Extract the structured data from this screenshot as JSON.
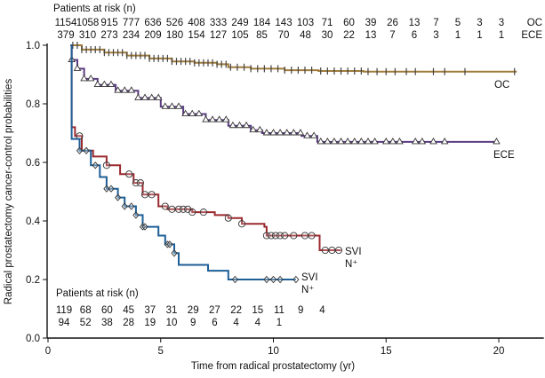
{
  "chart_data": {
    "type": "line",
    "subtype": "kaplan-meier",
    "title": "",
    "xlabel": "Time from radical prostatectomy (yr)",
    "ylabel": "Radical prostatectomy cancer-control probabilities",
    "xlim": [
      0,
      22
    ],
    "ylim": [
      0,
      1
    ],
    "x_ticks": [
      "0",
      "5",
      "10",
      "15",
      "20"
    ],
    "x_tick_values": [
      0,
      5,
      10,
      15,
      20
    ],
    "y_ticks": [
      "0.0",
      "0.2",
      "0.4",
      "0.6",
      "0.8",
      "1.0"
    ],
    "y_tick_values": [
      0,
      0.2,
      0.4,
      0.6,
      0.8,
      1.0
    ],
    "grid": false,
    "series": [
      {
        "name": "OC",
        "label_lines": [
          "OC"
        ],
        "color": "#a07c3c",
        "marker": "tick",
        "points": [
          [
            1.0,
            1.0
          ],
          [
            1.5,
            0.985
          ],
          [
            2.5,
            0.975
          ],
          [
            3.5,
            0.965
          ],
          [
            4.5,
            0.955
          ],
          [
            5.5,
            0.945
          ],
          [
            6.5,
            0.94
          ],
          [
            7.5,
            0.935
          ],
          [
            8.0,
            0.925
          ],
          [
            9.0,
            0.92
          ],
          [
            10.5,
            0.915
          ],
          [
            12.0,
            0.912
          ],
          [
            14.0,
            0.91
          ],
          [
            20.8,
            0.91
          ]
        ],
        "censor_x": [
          1.1,
          1.3,
          1.5,
          1.7,
          1.9,
          2.1,
          2.3,
          2.5,
          2.7,
          2.9,
          3.1,
          3.3,
          3.5,
          3.7,
          3.9,
          4.1,
          4.3,
          4.5,
          4.7,
          4.9,
          5.1,
          5.3,
          5.5,
          5.7,
          5.9,
          6.1,
          6.3,
          6.5,
          6.7,
          6.9,
          7.1,
          7.3,
          7.5,
          7.7,
          7.9,
          8.1,
          8.4,
          8.7,
          9.0,
          9.3,
          9.6,
          9.9,
          10.2,
          10.5,
          10.8,
          11.1,
          11.4,
          11.7,
          12.1,
          12.4,
          12.7,
          13.0,
          13.3,
          13.6,
          13.9,
          14.2,
          14.6,
          15.0,
          15.4,
          15.9,
          16.3,
          17.1,
          17.6,
          18.5,
          20.7
        ]
      },
      {
        "name": "ECE",
        "label_lines": [
          "ECE"
        ],
        "color": "#5a3c82",
        "marker": "triangle",
        "points": [
          [
            1.0,
            1.0
          ],
          [
            1.05,
            0.95
          ],
          [
            1.3,
            0.92
          ],
          [
            1.6,
            0.885
          ],
          [
            2.2,
            0.865
          ],
          [
            3.0,
            0.845
          ],
          [
            4.0,
            0.82
          ],
          [
            5.0,
            0.79
          ],
          [
            6.0,
            0.765
          ],
          [
            7.0,
            0.745
          ],
          [
            8.0,
            0.725
          ],
          [
            9.0,
            0.71
          ],
          [
            9.5,
            0.7
          ],
          [
            11.2,
            0.7
          ],
          [
            11.25,
            0.69
          ],
          [
            11.9,
            0.69
          ],
          [
            11.95,
            0.67
          ],
          [
            19.9,
            0.67
          ]
        ],
        "censor_x": [
          1.05,
          1.3,
          1.6,
          1.9,
          2.2,
          2.5,
          2.8,
          3.1,
          3.4,
          3.7,
          4.0,
          4.3,
          4.6,
          4.9,
          5.2,
          5.5,
          5.8,
          6.1,
          6.4,
          6.7,
          7.0,
          7.3,
          7.6,
          7.9,
          8.2,
          8.5,
          8.8,
          9.1,
          9.4,
          9.7,
          10.0,
          10.3,
          10.6,
          10.9,
          11.2,
          11.5,
          11.8,
          12.1,
          12.4,
          12.7,
          13.0,
          13.3,
          13.6,
          13.9,
          14.2,
          14.5,
          15.0,
          15.3,
          15.6,
          16.3,
          16.6,
          17.1,
          17.6,
          19.9
        ]
      },
      {
        "name": "SVI",
        "label_lines": [
          "SVI",
          "N⁺"
        ],
        "color": "#9b2a2f",
        "marker": "circle",
        "points": [
          [
            1.0,
            1.0
          ],
          [
            1.05,
            0.72
          ],
          [
            1.2,
            0.69
          ],
          [
            1.5,
            0.64
          ],
          [
            2.0,
            0.62
          ],
          [
            2.6,
            0.59
          ],
          [
            3.2,
            0.56
          ],
          [
            3.8,
            0.53
          ],
          [
            4.2,
            0.49
          ],
          [
            4.9,
            0.45
          ],
          [
            5.3,
            0.44
          ],
          [
            6.4,
            0.43
          ],
          [
            7.4,
            0.42
          ],
          [
            8.0,
            0.41
          ],
          [
            8.6,
            0.39
          ],
          [
            9.6,
            0.38
          ],
          [
            9.7,
            0.35
          ],
          [
            12.0,
            0.35
          ],
          [
            12.05,
            0.3
          ],
          [
            13.0,
            0.3
          ]
        ],
        "censor_x": [
          1.4,
          2.6,
          3.6,
          3.9,
          4.1,
          4.3,
          4.6,
          5.2,
          5.5,
          5.8,
          6.0,
          6.2,
          6.4,
          6.9,
          8.0,
          8.6,
          9.7,
          9.9,
          10.1,
          10.3,
          10.5,
          10.9,
          11.4,
          11.7,
          12.3,
          12.6,
          12.9
        ]
      },
      {
        "name": "N+",
        "label_lines": [
          "SVI",
          "N⁺"
        ],
        "color": "#1e5f96",
        "marker": "diamond",
        "points": [
          [
            1.0,
            1.0
          ],
          [
            1.05,
            0.68
          ],
          [
            1.4,
            0.64
          ],
          [
            1.9,
            0.59
          ],
          [
            2.3,
            0.55
          ],
          [
            2.6,
            0.51
          ],
          [
            3.1,
            0.48
          ],
          [
            3.4,
            0.45
          ],
          [
            3.9,
            0.42
          ],
          [
            4.2,
            0.38
          ],
          [
            4.9,
            0.35
          ],
          [
            5.2,
            0.32
          ],
          [
            5.6,
            0.29
          ],
          [
            5.8,
            0.25
          ],
          [
            7.1,
            0.23
          ],
          [
            8.0,
            0.2
          ],
          [
            11.0,
            0.2
          ]
        ],
        "censor_x": [
          1.4,
          1.7,
          2.1,
          2.6,
          2.8,
          3.1,
          3.4,
          3.7,
          3.9,
          4.2,
          4.3,
          5.3,
          5.4,
          5.6,
          8.3,
          9.7,
          10.0,
          10.3,
          11.0
        ]
      }
    ],
    "risk_tables": [
      {
        "heading": "Patients at risk (n)",
        "position": "top",
        "rows": [
          {
            "group": "OC",
            "values": [
              1154,
              1058,
              915,
              777,
              636,
              526,
              408,
              333,
              249,
              184,
              143,
              103,
              71,
              60,
              39,
              26,
              13,
              7,
              5,
              3,
              3
            ]
          },
          {
            "group": "ECE",
            "values": [
              379,
              310,
              273,
              234,
              209,
              180,
              154,
              127,
              105,
              85,
              70,
              48,
              30,
              22,
              13,
              7,
              6,
              3,
              1,
              1,
              1
            ]
          }
        ]
      },
      {
        "heading": "Patients at risk (n)",
        "position": "bottom-left",
        "rows": [
          {
            "group": "SVI",
            "values": [
              119,
              68,
              60,
              45,
              37,
              31,
              29,
              27,
              22,
              15,
              11,
              9,
              4
            ]
          },
          {
            "group": "N+",
            "values": [
              94,
              52,
              38,
              28,
              19,
              10,
              9,
              6,
              4,
              4,
              1
            ]
          }
        ]
      }
    ]
  }
}
